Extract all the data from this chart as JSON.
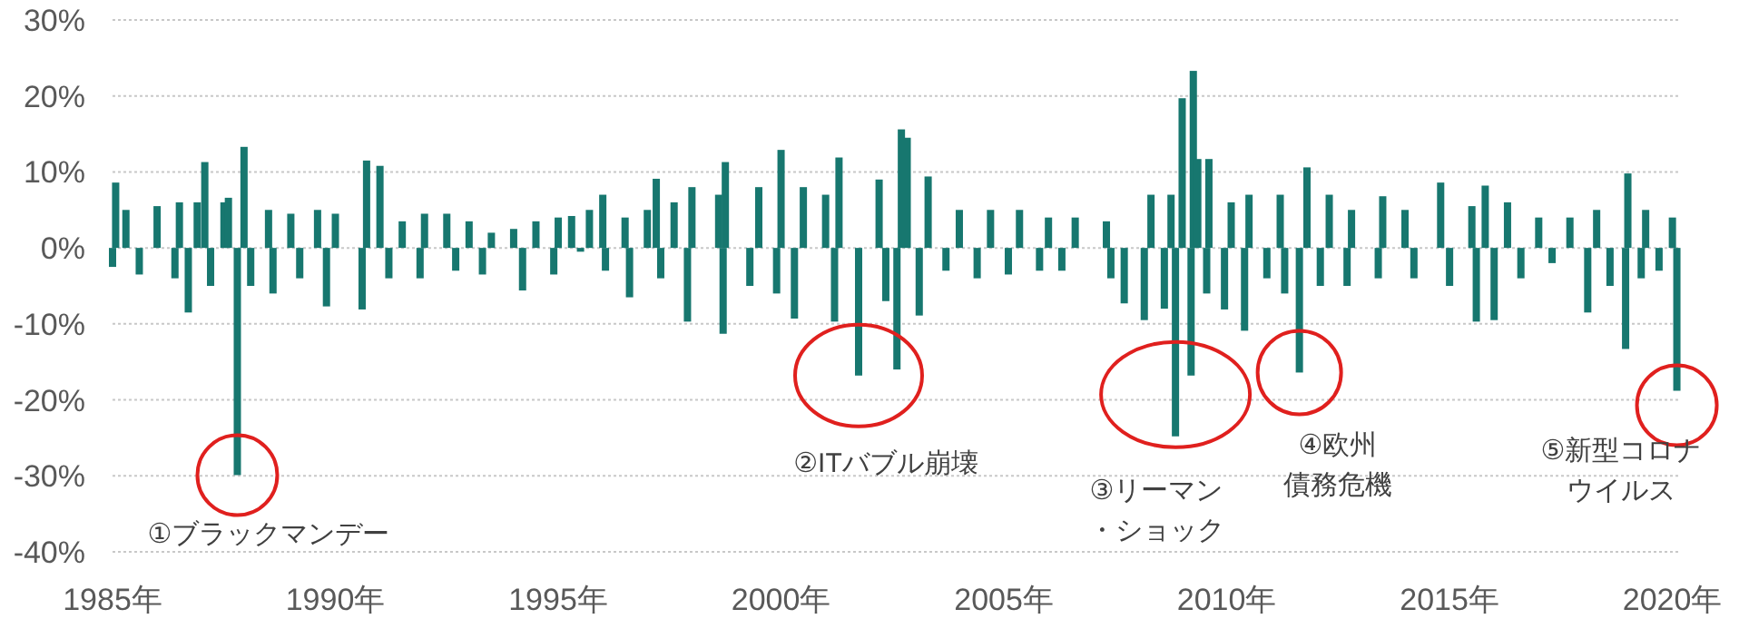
{
  "chart_data": {
    "type": "bar",
    "x": [
      1985.0,
      1985.07,
      1985.3,
      1985.6,
      1986.0,
      1986.4,
      1986.5,
      1986.7,
      1986.9,
      1987.07,
      1987.2,
      1987.5,
      1987.6,
      1987.8,
      1987.95,
      1988.1,
      1988.5,
      1988.6,
      1989.0,
      1989.2,
      1989.6,
      1989.8,
      1990.0,
      1990.6,
      1990.7,
      1991.0,
      1991.2,
      1991.5,
      1991.9,
      1992.0,
      1992.5,
      1992.7,
      1993.0,
      1993.3,
      1993.5,
      1994.0,
      1994.2,
      1994.5,
      1994.9,
      1995.0,
      1995.3,
      1995.5,
      1995.7,
      1996.0,
      1996.06,
      1996.5,
      1996.6,
      1997.0,
      1997.2,
      1997.3,
      1997.6,
      1997.9,
      1998.0,
      1998.6,
      1998.7,
      1998.75,
      1999.3,
      1999.5,
      1999.9,
      2000.0,
      2000.3,
      2000.5,
      2001.0,
      2001.2,
      2001.3,
      2001.74,
      2002.2,
      2002.35,
      2002.6,
      2002.7,
      2002.83,
      2003.1,
      2003.3,
      2003.7,
      2004.0,
      2004.4,
      2004.7,
      2005.1,
      2005.35,
      2005.8,
      2006.0,
      2006.3,
      2006.6,
      2007.3,
      2007.4,
      2007.7,
      2008.15,
      2008.3,
      2008.6,
      2008.75,
      2008.85,
      2009.0,
      2009.2,
      2009.25,
      2009.35,
      2009.55,
      2009.6,
      2009.95,
      2010.1,
      2010.4,
      2010.5,
      2010.9,
      2011.2,
      2011.3,
      2011.63,
      2011.8,
      2012.1,
      2012.3,
      2012.7,
      2012.8,
      2013.4,
      2013.5,
      2014.0,
      2014.2,
      2014.8,
      2015.0,
      2015.5,
      2015.6,
      2015.8,
      2016.0,
      2016.3,
      2016.6,
      2017.0,
      2017.3,
      2017.7,
      2018.1,
      2018.3,
      2018.6,
      2018.95,
      2019.0,
      2019.3,
      2019.4,
      2019.7,
      2020.0,
      2020.1
    ],
    "values": [
      -2.5,
      8.6,
      5,
      -3.5,
      5.5,
      -4,
      6,
      -8.5,
      6,
      11.3,
      -5,
      6,
      6.6,
      -29.9,
      13.3,
      -5,
      5,
      -6,
      4.5,
      -4,
      5,
      -7.7,
      4.5,
      -8.1,
      11.5,
      10.8,
      -4,
      3.5,
      -4,
      4.5,
      4.5,
      -3,
      3.5,
      -3.5,
      2,
      2.5,
      -5.6,
      3.5,
      -3.5,
      4,
      4.2,
      -0.5,
      5,
      7,
      -3,
      4,
      -6.5,
      5,
      9.1,
      -4,
      6,
      -9.7,
      8,
      7,
      -11.3,
      11.3,
      -5,
      8,
      -6,
      12.9,
      -9.3,
      8,
      7,
      -9.7,
      11.9,
      -16.8,
      9,
      -7,
      -16,
      15.6,
      14.5,
      -8.9,
      9.4,
      -3,
      5,
      -4,
      5,
      -3.5,
      5,
      -3,
      4,
      -3,
      4,
      3.5,
      -4,
      -7.3,
      -9.5,
      7,
      -8,
      7,
      -24.8,
      19.7,
      -16.8,
      23.3,
      11.7,
      -6,
      11.7,
      -8.1,
      6,
      -10.9,
      7,
      -4,
      7,
      -6,
      -16.4,
      10.6,
      -5,
      7,
      -5,
      5,
      -4,
      6.8,
      5,
      -4,
      8.6,
      -5,
      5.5,
      -9.7,
      8.2,
      -9.5,
      6,
      -4,
      4,
      -2,
      4,
      -8.5,
      5,
      -5,
      -13.3,
      9.8,
      -4,
      5,
      -3,
      4,
      -18.8
    ],
    "color": "#17776f",
    "xlim": [
      1985,
      2020.15
    ],
    "xticks": [
      {
        "value": 1985,
        "label": "1985年"
      },
      {
        "value": 1990,
        "label": "1990年"
      },
      {
        "value": 1995,
        "label": "1995年"
      },
      {
        "value": 2000,
        "label": "2000年"
      },
      {
        "value": 2005,
        "label": "2005年"
      },
      {
        "value": 2010,
        "label": "2010年"
      },
      {
        "value": 2015,
        "label": "2015年"
      },
      {
        "value": 2020,
        "label": "2020年"
      }
    ],
    "ylim": [
      -40,
      30
    ],
    "yticks": [
      {
        "value": -40,
        "label": "-40%"
      },
      {
        "value": -30,
        "label": "-30%"
      },
      {
        "value": -20,
        "label": "-20%"
      },
      {
        "value": -10,
        "label": "-10%"
      },
      {
        "value": 0,
        "label": "0%"
      },
      {
        "value": 10,
        "label": "10%"
      },
      {
        "value": 20,
        "label": "20%"
      },
      {
        "value": 30,
        "label": "30%"
      }
    ],
    "grid": "y",
    "annotations": [
      {
        "text": "①ブラックマンデー",
        "x": 1987.8,
        "y": -29.9
      },
      {
        "text": "②ITバブル崩壊",
        "x": 2001.74,
        "y": -16.8
      },
      {
        "text": "③リーマン・ショック",
        "x": 2008.85,
        "y": -24.8
      },
      {
        "text": "④欧州債務危機",
        "x": 2011.63,
        "y": -16.4
      },
      {
        "text": "⑤新型コロナウイルス",
        "x": 2020.1,
        "y": -18.8
      }
    ]
  }
}
